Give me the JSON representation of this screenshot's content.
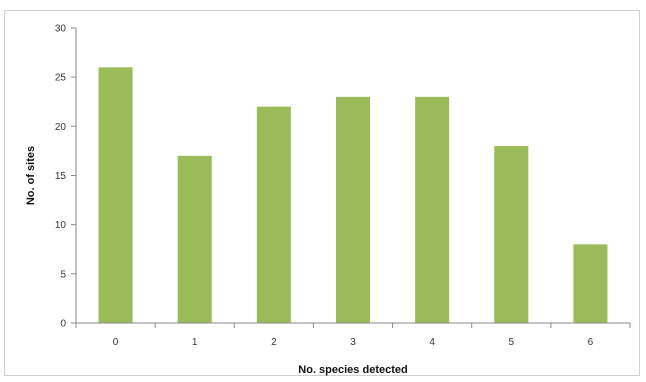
{
  "chart_data": {
    "type": "bar",
    "title": "",
    "xlabel": "No. species detected",
    "ylabel": "No. of sites",
    "categories": [
      "0",
      "1",
      "2",
      "3",
      "4",
      "5",
      "6"
    ],
    "values": [
      26,
      17,
      22,
      23,
      23,
      18,
      8
    ],
    "ylim": [
      0,
      30
    ],
    "yticks": [
      0,
      5,
      10,
      15,
      20,
      25,
      30
    ],
    "grid": false,
    "legend": "none",
    "bar_color": "#9bbb59"
  }
}
